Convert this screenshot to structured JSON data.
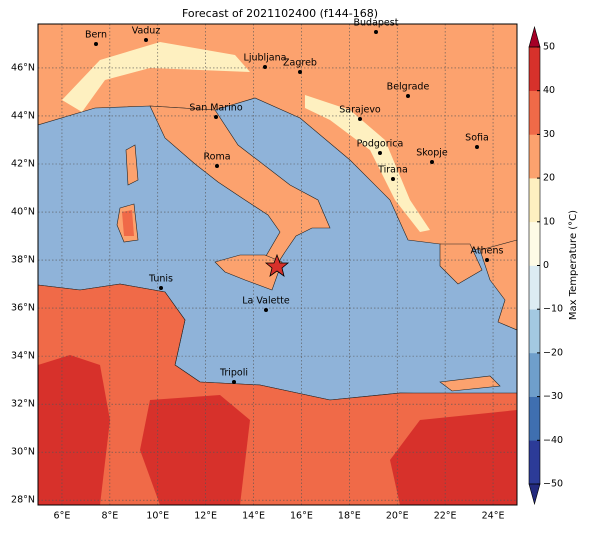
{
  "title": "Forecast of 2021102400 (f144-168)",
  "lon_range": [
    5,
    25
  ],
  "lat_range": [
    27.8,
    47.83
  ],
  "lon_ticks": [
    {
      "value": 6,
      "label": "6°E"
    },
    {
      "value": 8,
      "label": "8°E"
    },
    {
      "value": 10,
      "label": "10°E"
    },
    {
      "value": 12,
      "label": "12°E"
    },
    {
      "value": 14,
      "label": "14°E"
    },
    {
      "value": 16,
      "label": "16°E"
    },
    {
      "value": 18,
      "label": "18°E"
    },
    {
      "value": 20,
      "label": "20°E"
    },
    {
      "value": 22,
      "label": "22°E"
    },
    {
      "value": 24,
      "label": "24°E"
    }
  ],
  "lat_ticks": [
    {
      "value": 28,
      "label": "28°N"
    },
    {
      "value": 30,
      "label": "30°N"
    },
    {
      "value": 32,
      "label": "32°N"
    },
    {
      "value": 34,
      "label": "34°N"
    },
    {
      "value": 36,
      "label": "36°N"
    },
    {
      "value": 38,
      "label": "38°N"
    },
    {
      "value": 40,
      "label": "40°N"
    },
    {
      "value": 42,
      "label": "42°N"
    },
    {
      "value": 44,
      "label": "44°N"
    },
    {
      "value": 46,
      "label": "46°N"
    }
  ],
  "cities": [
    "Bern",
    "Vaduz",
    "Budapest",
    "Ljubljana",
    "Zagreb",
    "Belgrade",
    "San Marino",
    "Sarajevo",
    "Sofia",
    "Roma",
    "Podgorica",
    "Skopje",
    "Tirana",
    "Athens",
    "Tunis",
    "La Valette",
    "Tripoli"
  ],
  "colorbar": {
    "label": "Max Temperature (°C)",
    "range": [
      -50,
      50
    ],
    "ticks": [
      {
        "value": -50,
        "label": "−50"
      },
      {
        "value": -40,
        "label": "−40"
      },
      {
        "value": -30,
        "label": "−30"
      },
      {
        "value": -20,
        "label": "−20"
      },
      {
        "value": -10,
        "label": "−10"
      },
      0,
      10,
      20,
      30,
      40,
      50
    ],
    "colors": [
      "#2c3b98",
      "#3f6fb0",
      "#6f9fcb",
      "#a3c9e1",
      "#dcecf3",
      "#fefbe6",
      "#fef0c0",
      "#fca26e",
      "#f06a48",
      "#d7312b"
    ],
    "under": "#232a7e",
    "over": "#a50026"
  },
  "sea_color": "#8fb3d9",
  "grid": true
}
